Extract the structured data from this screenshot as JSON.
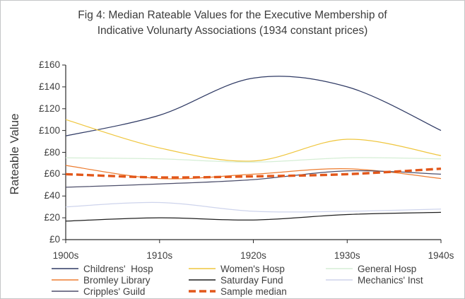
{
  "figure": {
    "title_lines": [
      "Fig 4: Median Rateable Values for the Executive Membership of",
      "Indicative Volunarty Associations (1934 constant prices)"
    ]
  },
  "chart_data": {
    "type": "line",
    "title": "Fig 4: Median Rateable Values for the Executive Membership of Indicative Volunarty Associations (1934 constant prices)",
    "ylabel": "Rateable Value",
    "xlabel": "",
    "categories": [
      "1900s",
      "1910s",
      "1920s",
      "1930s",
      "1940s"
    ],
    "ylim": [
      0,
      160
    ],
    "y_tick_step": 20,
    "y_tick_labels": [
      "£0",
      "£20",
      "£40",
      "£60",
      "£80",
      "£100",
      "£120",
      "£140",
      "£160"
    ],
    "grid": false,
    "legend_position": "bottom",
    "line_smoothing": true,
    "axis_color": "#2b2b2b",
    "series": [
      {
        "name": "Childrens'  Hosp",
        "color": "#2f3a64",
        "style": "solid",
        "values": [
          95,
          114,
          148,
          140,
          100
        ]
      },
      {
        "name": "Women's Hosp",
        "color": "#efc63e",
        "style": "solid",
        "values": [
          110,
          84,
          72,
          92,
          77
        ]
      },
      {
        "name": "General Hosp",
        "color": "#d5eed5",
        "style": "solid",
        "values": [
          75,
          74,
          71,
          75,
          74
        ]
      },
      {
        "name": "Bromley Library",
        "color": "#ed7d31",
        "style": "solid",
        "values": [
          68,
          56,
          60,
          65,
          56
        ]
      },
      {
        "name": "Saturday Fund",
        "color": "#1f1f1f",
        "style": "solid",
        "values": [
          17,
          20,
          18,
          23,
          25
        ]
      },
      {
        "name": "Mechanics' Inst",
        "color": "#ced4ec",
        "style": "solid",
        "values": [
          30,
          34,
          26,
          26,
          28
        ]
      },
      {
        "name": "Cripples' Guild",
        "color": "#4d4f6b",
        "style": "solid",
        "values": [
          48,
          51,
          55,
          63,
          60
        ]
      },
      {
        "name": "Sample median",
        "color": "#e2571a",
        "style": "dashed",
        "values": [
          60,
          57,
          58,
          60,
          65
        ]
      }
    ]
  }
}
